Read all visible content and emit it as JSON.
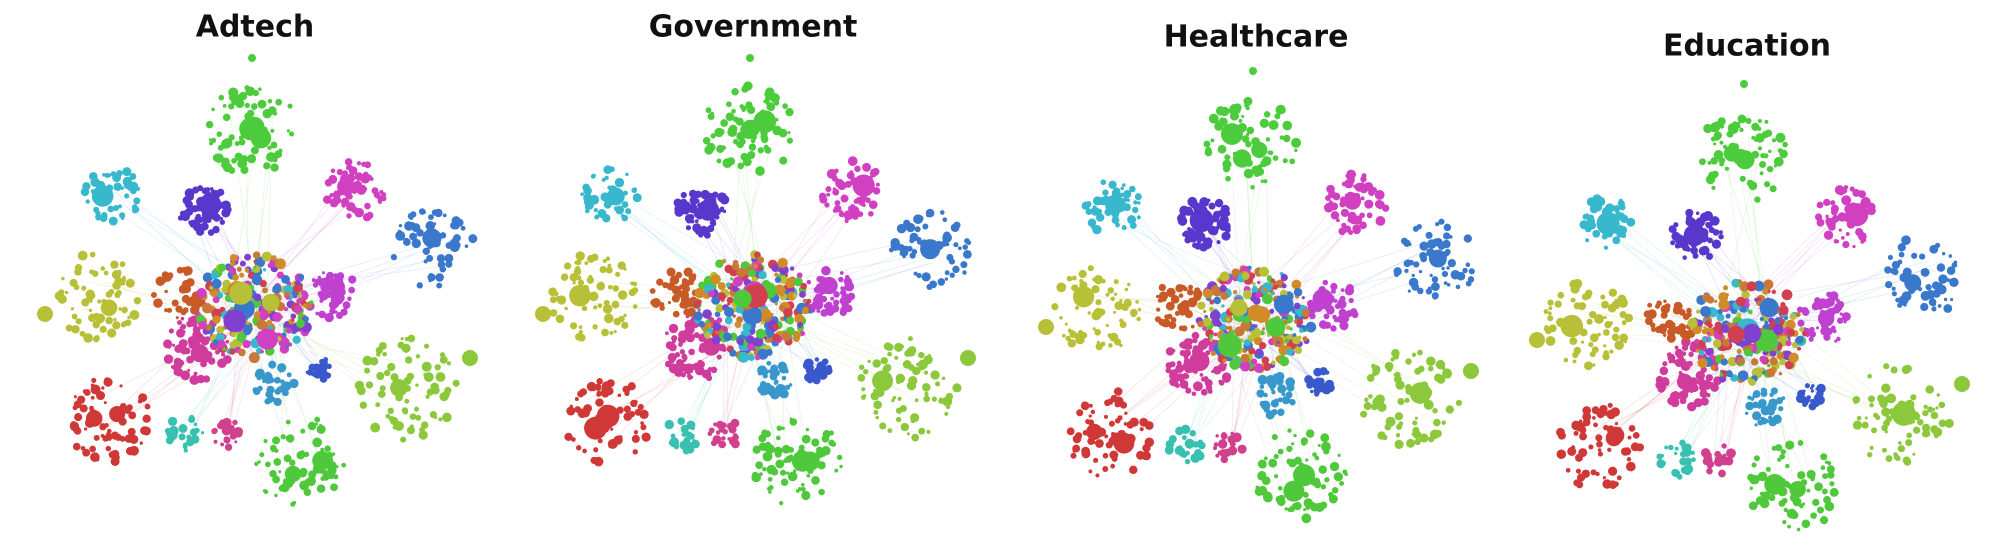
{
  "panels": [
    {
      "title": "Adtech"
    },
    {
      "title": "Government"
    },
    {
      "title": "Healthcare"
    },
    {
      "title": "Education"
    }
  ]
}
